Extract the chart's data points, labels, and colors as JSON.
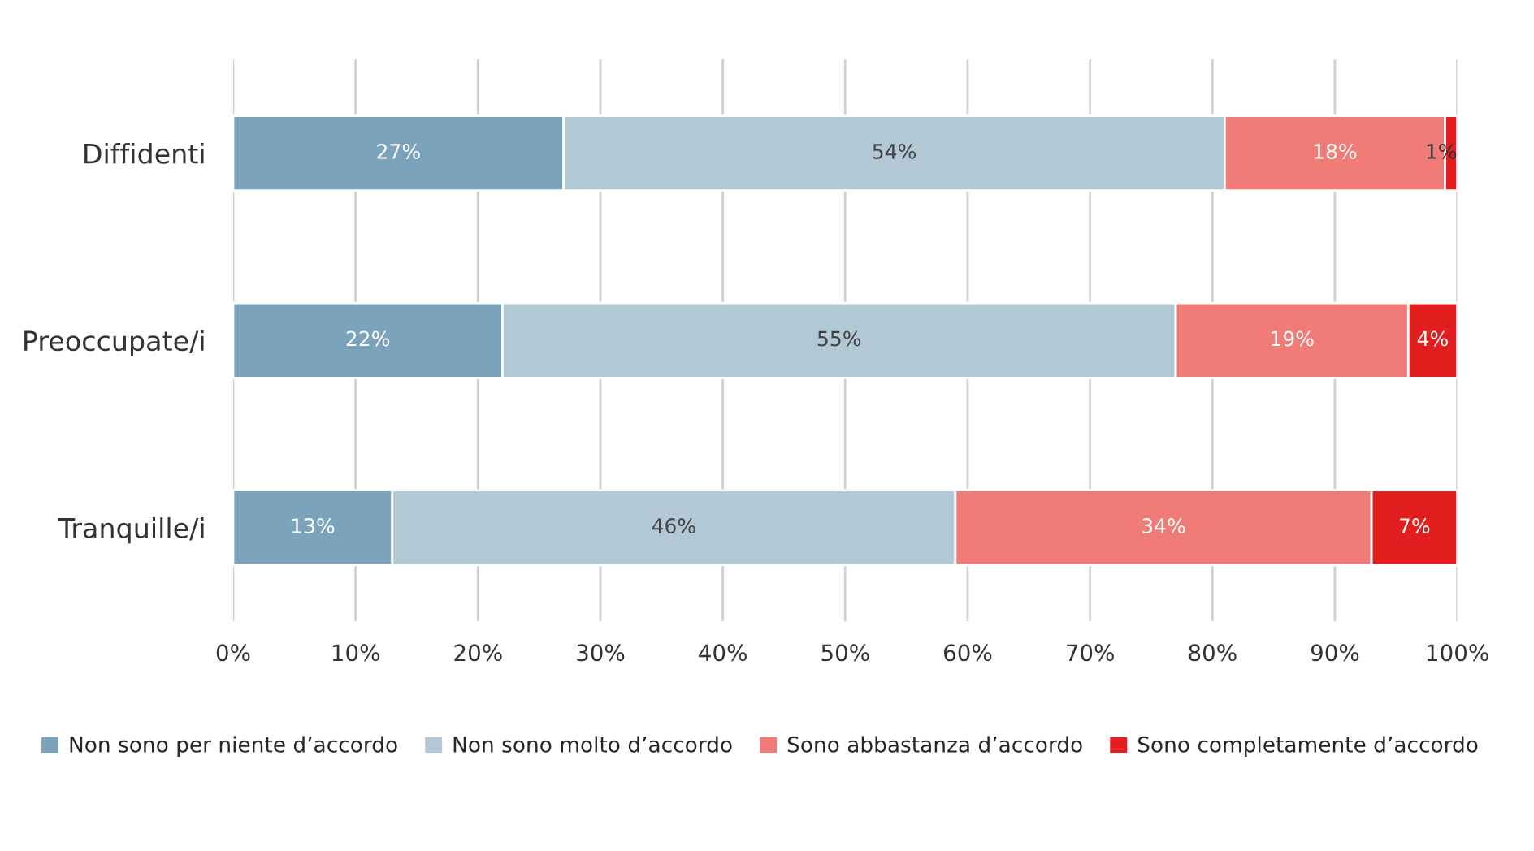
{
  "chart_data": {
    "type": "bar",
    "orientation": "horizontal",
    "stacked": true,
    "categories": [
      "Diffidenti",
      "Preoccupate/i",
      "Tranquille/i"
    ],
    "series": [
      {
        "name": "Non sono per niente d’accordo",
        "color": "#7ba3bc",
        "values": [
          27,
          22,
          13
        ],
        "value_labels": [
          "27%",
          "22%",
          "13%"
        ]
      },
      {
        "name": "Non sono molto d’accordo",
        "color": "#b3c8d5",
        "values": [
          54,
          55,
          46
        ],
        "value_labels": [
          "54%",
          "55%",
          "46%"
        ]
      },
      {
        "name": "Sono abbastanza d’accordo",
        "color": "#f17b76",
        "values": [
          18,
          19,
          34
        ],
        "value_labels": [
          "18%",
          "19%",
          "34%"
        ]
      },
      {
        "name": "Sono completamente d’accordo",
        "color": "#e31e1f",
        "values": [
          1,
          4,
          7
        ],
        "value_labels": [
          "1%",
          "4%",
          "7%"
        ]
      }
    ],
    "xlim": [
      0,
      100
    ],
    "xticks": [
      {
        "value": 0,
        "label": "0%"
      },
      {
        "value": 10,
        "label": "10%"
      },
      {
        "value": 20,
        "label": "20%"
      },
      {
        "value": 30,
        "label": "30%"
      },
      {
        "value": 40,
        "label": "40%"
      },
      {
        "value": 50,
        "label": "50%"
      },
      {
        "value": 60,
        "label": "60%"
      },
      {
        "value": 70,
        "label": "70%"
      },
      {
        "value": 80,
        "label": "80%"
      },
      {
        "value": 90,
        "label": "90%"
      },
      {
        "value": 100,
        "label": "100%"
      }
    ],
    "grid": "x",
    "legend": "bottom"
  }
}
